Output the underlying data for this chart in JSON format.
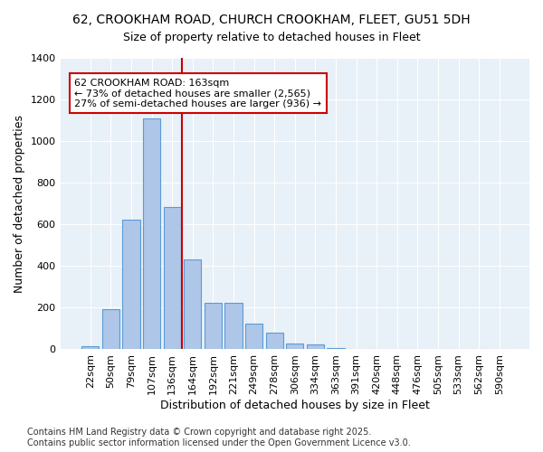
{
  "title_line1": "62, CROOKHAM ROAD, CHURCH CROOKHAM, FLEET, GU51 5DH",
  "title_line2": "Size of property relative to detached houses in Fleet",
  "xlabel": "Distribution of detached houses by size in Fleet",
  "ylabel": "Number of detached properties",
  "categories": [
    "22sqm",
    "50sqm",
    "79sqm",
    "107sqm",
    "136sqm",
    "164sqm",
    "192sqm",
    "221sqm",
    "249sqm",
    "278sqm",
    "306sqm",
    "334sqm",
    "363sqm",
    "391sqm",
    "420sqm",
    "448sqm",
    "476sqm",
    "505sqm",
    "533sqm",
    "562sqm",
    "590sqm"
  ],
  "values": [
    15,
    195,
    625,
    1110,
    685,
    430,
    225,
    225,
    125,
    80,
    30,
    25,
    5,
    0,
    0,
    0,
    0,
    0,
    0,
    0,
    0
  ],
  "bar_color": "#aec6e8",
  "bar_edgecolor": "#5b9bd5",
  "vline_x": 4.5,
  "vline_color": "#cc0000",
  "annotation_text": "62 CROOKHAM ROAD: 163sqm\n← 73% of detached houses are smaller (2,565)\n27% of semi-detached houses are larger (936) →",
  "annotation_box_color": "#cc0000",
  "annotation_text_color": "#000000",
  "ylim": [
    0,
    1400
  ],
  "yticks": [
    0,
    200,
    400,
    600,
    800,
    1000,
    1200,
    1400
  ],
  "bg_color": "#ffffff",
  "plot_bg_color": "#e8f0f8",
  "footer": "Contains HM Land Registry data © Crown copyright and database right 2025.\nContains public sector information licensed under the Open Government Licence v3.0.",
  "title_fontsize": 10,
  "subtitle_fontsize": 9,
  "axis_label_fontsize": 9,
  "tick_fontsize": 8,
  "footer_fontsize": 7,
  "annot_fontsize": 8
}
